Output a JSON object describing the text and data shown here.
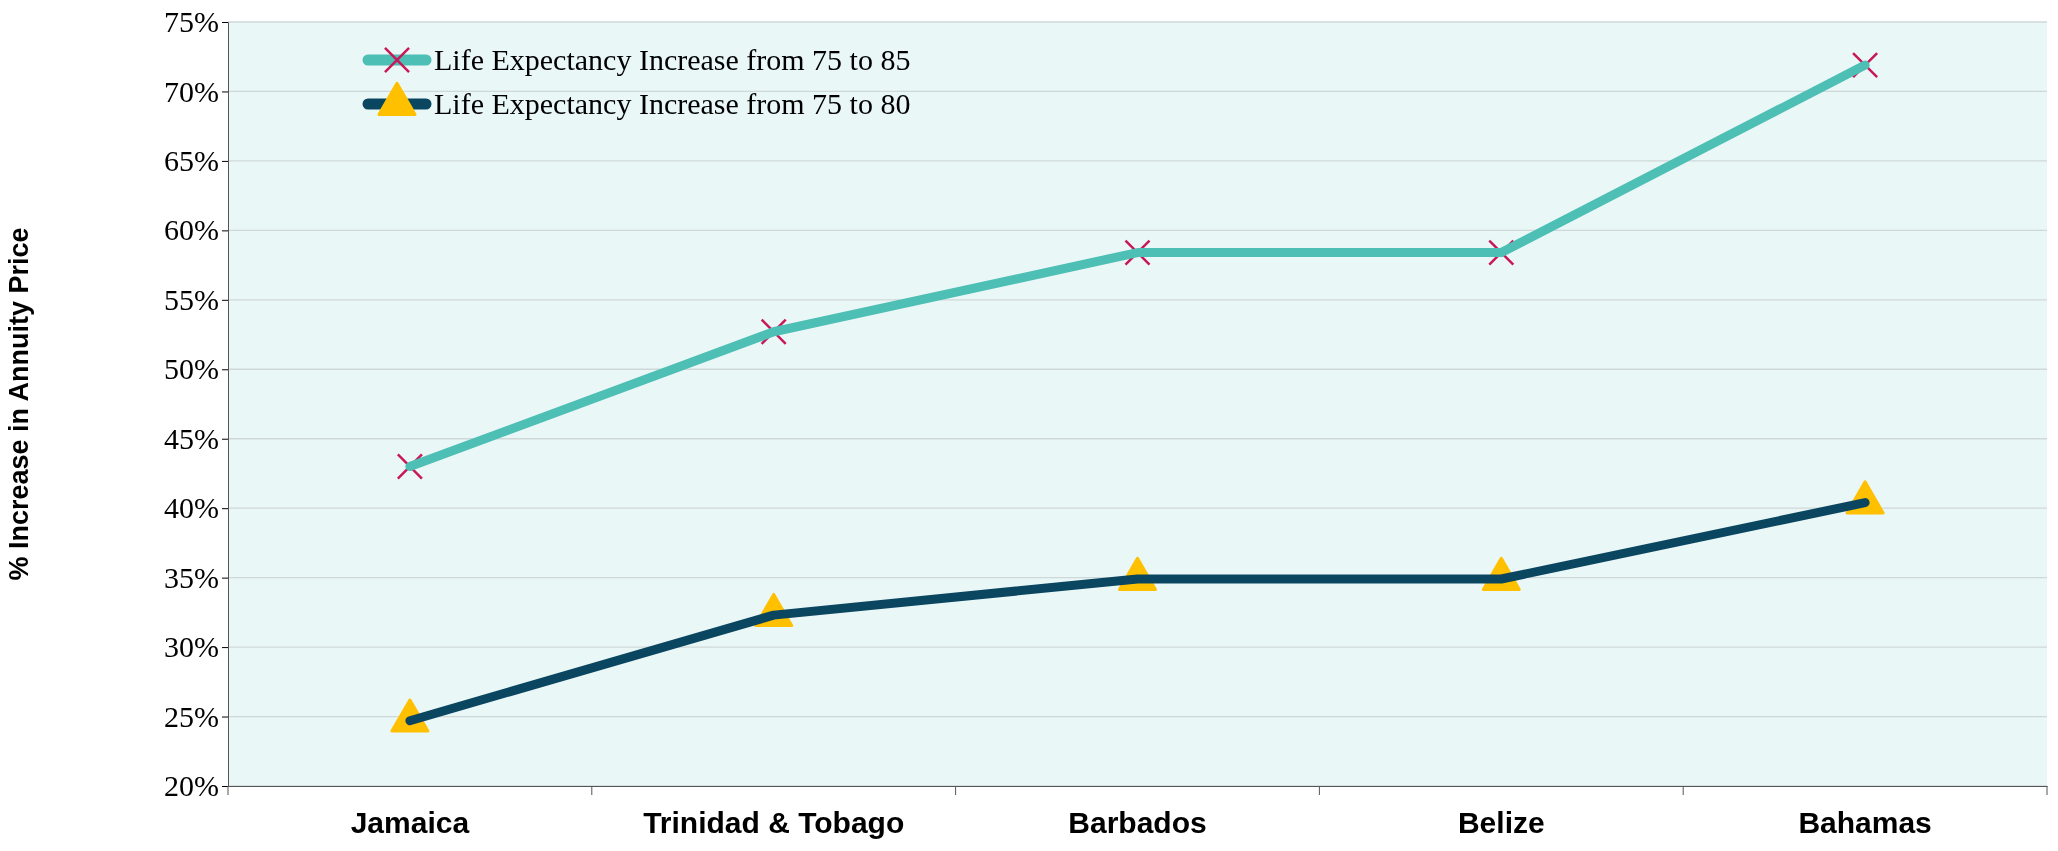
{
  "chart_data": {
    "type": "line",
    "ylabel": "% Increase in Annuity Price",
    "categories": [
      "Jamaica",
      "Trinidad & Tobago",
      "Barbados",
      "Belize",
      "Bahamas"
    ],
    "series": [
      {
        "name": "Life Expectancy Increase from 75 to 85",
        "color": "#4dbfb5",
        "marker": "cross",
        "values": [
          43,
          52.7,
          58.4,
          58.4,
          71.9
        ]
      },
      {
        "name": "Life Expectancy Increase from 75 to 80",
        "color": "#0b4660",
        "marker": "triangle",
        "values": [
          24.7,
          32.3,
          34.9,
          34.9,
          40.4
        ]
      }
    ],
    "ylim": [
      20,
      75
    ],
    "yticks": [
      {
        "value": 20,
        "label": "20%"
      },
      {
        "value": 25,
        "label": "25%"
      },
      {
        "value": 30,
        "label": "30%"
      },
      {
        "value": 35,
        "label": "35%"
      },
      {
        "value": 40,
        "label": "40%"
      },
      {
        "value": 45,
        "label": "45%"
      },
      {
        "value": 50,
        "label": "50%"
      },
      {
        "value": 55,
        "label": "55%"
      },
      {
        "value": 60,
        "label": "60%"
      },
      {
        "value": 65,
        "label": "65%"
      },
      {
        "value": 70,
        "label": "70%"
      },
      {
        "value": 75,
        "label": "75%"
      }
    ],
    "grid": "y",
    "legend": "top left",
    "line_style": "solid"
  }
}
